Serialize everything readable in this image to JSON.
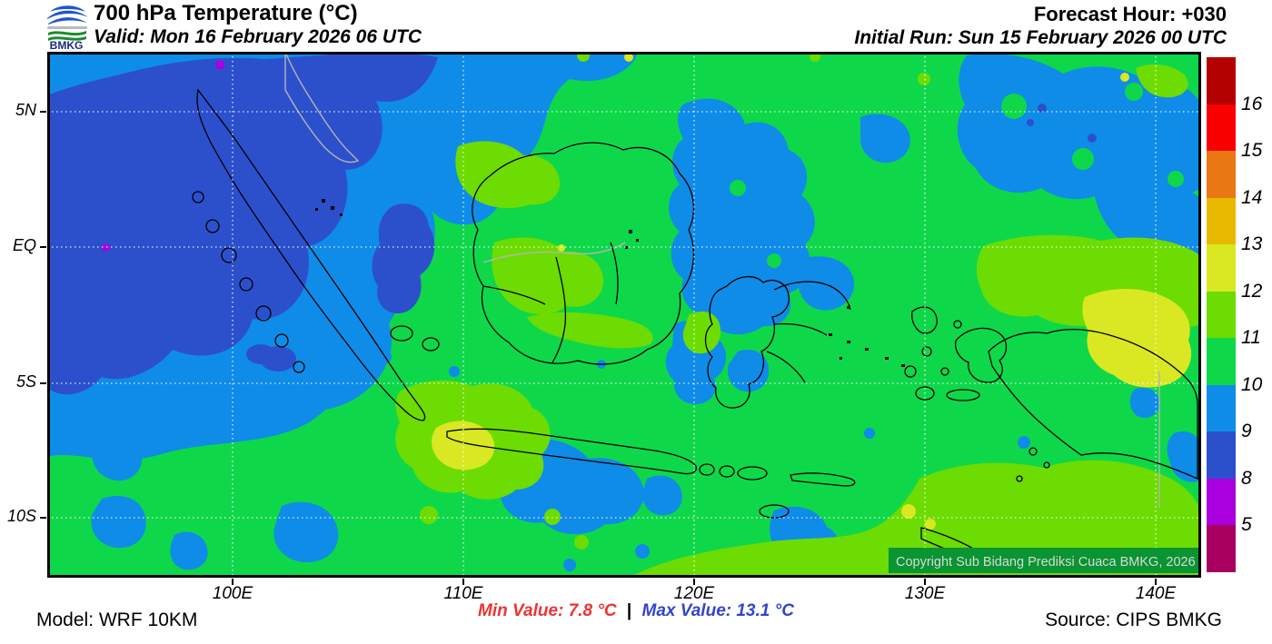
{
  "header": {
    "logo_text": "BMKG",
    "title": "700 hPa Temperature (°C)",
    "valid": "Valid: Mon 16 February 2026 06 UTC",
    "forecast_hour": "Forecast Hour: +030",
    "initial_run": "Initial Run: Sun 15 February 2026 00 UTC"
  },
  "map": {
    "lat_ticks": [
      "5N",
      "EQ",
      "5S",
      "10S"
    ],
    "lon_ticks": [
      "100E",
      "110E",
      "120E",
      "130E",
      "140E"
    ],
    "copyright": "Copyright Sub Bidang Prediksi Cuaca BMKG, 2026",
    "band_color": "#0a9432"
  },
  "colorbar": {
    "labels": [
      "16",
      "15",
      "14",
      "13",
      "12",
      "11",
      "10",
      "9",
      "8",
      "5"
    ],
    "colors": [
      "#b30000",
      "#fa0000",
      "#e87714",
      "#e8b900",
      "#d9e822",
      "#6cdc02",
      "#0fd74a",
      "#0f8ce8",
      "#2c50cc",
      "#aa00e0",
      "#a80061"
    ]
  },
  "palette": {
    "green": "#0fd74a",
    "light_blue": "#0f8ce8",
    "dark_blue": "#2c50cc",
    "chartreuse": "#6cdc02",
    "yellow": "#d9e822",
    "violet": "#aa00e0",
    "coast_gray": "#b4b4b4",
    "logo_blue": "#2255cc",
    "logo_green": "#1b8a2f"
  },
  "footer": {
    "model": "Model: WRF 10KM",
    "min_text": "Min Value: 7.8 °C",
    "min_color": "#ee3333",
    "separator": "|",
    "max_text": "Max Value: 13.1 °C",
    "max_color": "#3344cc",
    "source": "Source: CIPS BMKG"
  },
  "chart_data": {
    "type": "heatmap",
    "title": "700 hPa Temperature (°C)",
    "legend_boundaries_c": [
      16,
      15,
      14,
      13,
      12,
      11,
      10,
      9,
      8,
      5
    ],
    "legend_colors_top_to_bottom": [
      "#b30000",
      "#fa0000",
      "#e87714",
      "#e8b900",
      "#d9e822",
      "#6cdc02",
      "#0fd74a",
      "#0f8ce8",
      "#2c50cc",
      "#aa00e0",
      "#a80061"
    ],
    "min_value_c": 7.8,
    "max_value_c": 13.1,
    "x_ticks": [
      "100E",
      "110E",
      "120E",
      "130E",
      "140E"
    ],
    "y_ticks": [
      "5N",
      "EQ",
      "5S",
      "10S"
    ],
    "dominant_field_note": "Mostly 10-11C (green) across Indonesia; 8-10C (blues) northwest of Sumatra, Celebes Sea and north of Papua; 11-13C (chartreuse/yellow) south-central Indian Ocean, southern Borneo and Papua"
  }
}
